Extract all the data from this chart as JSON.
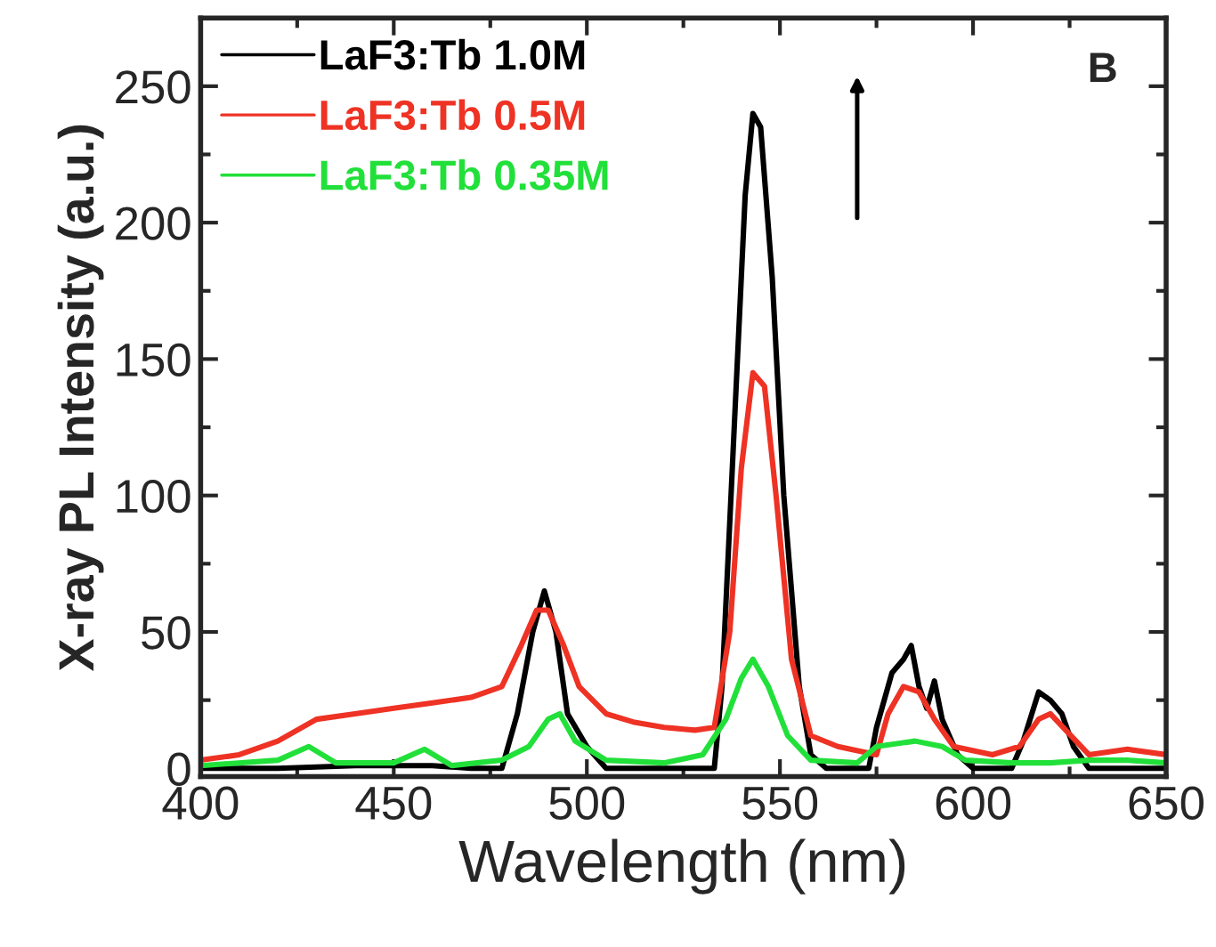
{
  "chart_data": {
    "type": "line",
    "xlabel": "Wavelength (nm)",
    "ylabel": "X-ray PL Intensity (a.u.)",
    "xlim": [
      400,
      650
    ],
    "xticks": [
      400,
      450,
      500,
      550,
      600,
      650
    ],
    "ylim": [
      -3,
      275
    ],
    "yticks": [
      0,
      50,
      100,
      150,
      200,
      250
    ],
    "legend": "top left",
    "grid": false,
    "marker": "none",
    "line_style": "solid",
    "annotations": [
      "B"
    ],
    "series": [
      {
        "name": "LaF3:Tb 1.0M",
        "color": "#000000",
        "x": [
          400,
          420,
          440,
          460,
          470,
          478,
          482,
          486,
          489,
          492,
          495,
          500,
          505,
          520,
          533,
          535,
          538,
          541,
          543,
          545,
          548,
          551,
          555,
          558,
          562,
          573,
          575,
          579,
          582,
          584,
          586,
          588,
          590,
          592,
          596,
          600,
          610,
          613,
          617,
          620,
          623,
          626,
          630,
          650
        ],
        "values": [
          0,
          0,
          1,
          1,
          0,
          0,
          20,
          50,
          65,
          50,
          20,
          8,
          0,
          0,
          0,
          30,
          120,
          210,
          240,
          235,
          180,
          100,
          30,
          5,
          0,
          0,
          15,
          35,
          40,
          45,
          30,
          22,
          32,
          18,
          5,
          0,
          0,
          10,
          28,
          25,
          20,
          8,
          0,
          0
        ]
      },
      {
        "name": "LaF3:Tb 0.5M",
        "color": "#ee3224",
        "x": [
          400,
          410,
          420,
          430,
          440,
          450,
          460,
          470,
          478,
          483,
          487,
          490,
          494,
          498,
          505,
          512,
          520,
          528,
          533,
          537,
          540,
          543,
          546,
          549,
          553,
          558,
          565,
          575,
          578,
          582,
          586,
          590,
          595,
          605,
          612,
          617,
          620,
          624,
          630,
          640,
          650
        ],
        "values": [
          3,
          5,
          10,
          18,
          20,
          22,
          24,
          26,
          30,
          45,
          58,
          58,
          45,
          30,
          20,
          17,
          15,
          14,
          15,
          50,
          110,
          145,
          140,
          100,
          40,
          12,
          8,
          5,
          20,
          30,
          28,
          18,
          8,
          5,
          8,
          18,
          20,
          14,
          5,
          7,
          5
        ]
      },
      {
        "name": "LaF3:Tb 0.35M",
        "color": "#22e03a",
        "x": [
          400,
          420,
          428,
          435,
          450,
          458,
          465,
          478,
          485,
          490,
          493,
          497,
          505,
          520,
          530,
          536,
          540,
          543,
          547,
          552,
          558,
          570,
          575,
          585,
          592,
          598,
          610,
          620,
          630,
          640,
          650
        ],
        "values": [
          1,
          3,
          8,
          2,
          2,
          7,
          1,
          3,
          8,
          18,
          20,
          10,
          3,
          2,
          5,
          18,
          33,
          40,
          30,
          12,
          3,
          2,
          8,
          10,
          8,
          3,
          2,
          2,
          3,
          3,
          2
        ]
      }
    ]
  }
}
